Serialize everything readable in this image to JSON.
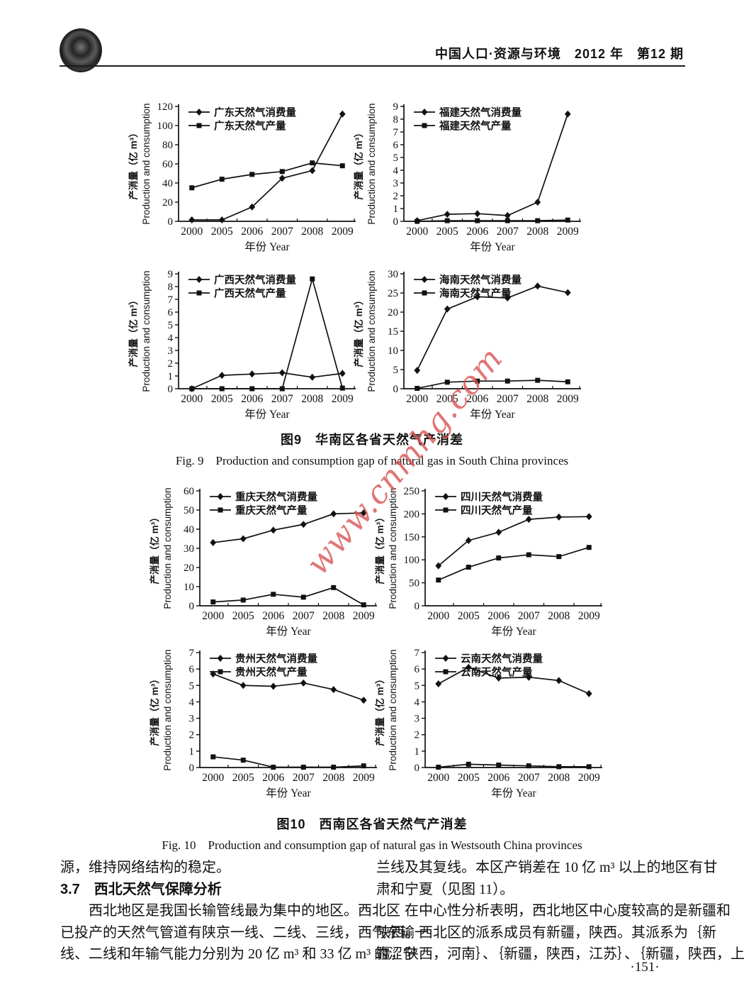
{
  "header": {
    "journal_title": "中国人口·资源与环境　2012 年　第12 期",
    "logo": "journal-seal"
  },
  "figures": {
    "fig9": {
      "caption_zh": "图9　华南区各省天然气产消差",
      "caption_en": "Fig. 9　Production and consumption gap of natural gas in South China provinces"
    },
    "fig10": {
      "caption_zh": "图10　西南区各省天然气产消差",
      "caption_en": "Fig. 10　Production and consumption gap of natural gas in Westsouth China provinces"
    }
  },
  "chart_data": [
    {
      "type": "line",
      "x": [
        "2000",
        "2005",
        "2006",
        "2007",
        "2008",
        "2009"
      ],
      "xlabel": "年份 Year",
      "ylabel_zh": "产消量（亿 m³）",
      "ylabel_en": "Production and consumption",
      "ylim": [
        0,
        120
      ],
      "yticks": [
        0,
        20,
        40,
        60,
        80,
        100,
        120
      ],
      "legend_position": "top-left",
      "series": [
        {
          "name": "广东天然气消费量",
          "marker": "diamond",
          "values": [
            1.5,
            1.5,
            15,
            45,
            53,
            112
          ]
        },
        {
          "name": "广东天然气产量",
          "marker": "square",
          "values": [
            35,
            44,
            49,
            52,
            61,
            58
          ]
        }
      ]
    },
    {
      "type": "line",
      "x": [
        "2000",
        "2005",
        "2006",
        "2007",
        "2008",
        "2009"
      ],
      "xlabel": "年份 Year",
      "ylabel_zh": "产消量（亿 m³）",
      "ylabel_en": "Production and consumption",
      "ylim": [
        0,
        9
      ],
      "yticks": [
        0,
        1,
        2,
        3,
        4,
        5,
        6,
        7,
        8,
        9
      ],
      "legend_position": "top-left",
      "series": [
        {
          "name": "福建天然气消费量",
          "marker": "diamond",
          "values": [
            0.05,
            0.55,
            0.6,
            0.45,
            1.5,
            8.4
          ]
        },
        {
          "name": "福建天然气产量",
          "marker": "square",
          "values": [
            0,
            0.05,
            0.05,
            0.05,
            0.05,
            0.1
          ]
        }
      ]
    },
    {
      "type": "line",
      "x": [
        "2000",
        "2005",
        "2006",
        "2007",
        "2008",
        "2009"
      ],
      "xlabel": "年份 Year",
      "ylabel_zh": "产消量（亿 m³）",
      "ylabel_en": "Production and consumption",
      "ylim": [
        0,
        9
      ],
      "yticks": [
        0,
        1,
        2,
        3,
        4,
        5,
        6,
        7,
        8,
        9
      ],
      "legend_position": "top-left",
      "series": [
        {
          "name": "广西天然气消费量",
          "marker": "diamond",
          "values": [
            0,
            1.05,
            1.15,
            1.25,
            0.9,
            1.2
          ]
        },
        {
          "name": "广西天然气产量",
          "marker": "square",
          "values": [
            0,
            0,
            0,
            0,
            8.6,
            0.05
          ]
        }
      ]
    },
    {
      "type": "line",
      "x": [
        "2000",
        "2005",
        "2006",
        "2007",
        "2008",
        "2009"
      ],
      "xlabel": "年份 Year",
      "ylabel_zh": "产消量（亿 m³）",
      "ylabel_en": "Production and consumption",
      "ylim": [
        0,
        30
      ],
      "yticks": [
        0,
        5,
        10,
        15,
        20,
        25,
        30
      ],
      "legend_position": "top-left",
      "series": [
        {
          "name": "海南天然气消费量",
          "marker": "diamond",
          "values": [
            4.8,
            20.8,
            24,
            23.7,
            26.8,
            25.1
          ]
        },
        {
          "name": "海南天然气产量",
          "marker": "square",
          "values": [
            0.1,
            1.7,
            2,
            2,
            2.2,
            1.8
          ]
        }
      ]
    },
    {
      "type": "line",
      "x": [
        "2000",
        "2005",
        "2006",
        "2007",
        "2008",
        "2009"
      ],
      "xlabel": "年份 Year",
      "ylabel_zh": "产消量（亿 m³）",
      "ylabel_en": "Production and consumption",
      "ylim": [
        0,
        60
      ],
      "yticks": [
        0,
        10,
        20,
        30,
        40,
        50,
        60
      ],
      "legend_position": "top-left",
      "series": [
        {
          "name": "重庆天然气消费量",
          "marker": "diamond",
          "values": [
            33,
            35,
            39.5,
            42.5,
            48,
            48.5
          ]
        },
        {
          "name": "重庆天然气产量",
          "marker": "square",
          "values": [
            2,
            3,
            6,
            4.5,
            9.5,
            0.5
          ]
        }
      ]
    },
    {
      "type": "line",
      "x": [
        "2000",
        "2005",
        "2006",
        "2007",
        "2008",
        "2009"
      ],
      "xlabel": "年份 Year",
      "ylabel_zh": "产消量（亿 m³）",
      "ylabel_en": "Production and consumption",
      "ylim": [
        0,
        250
      ],
      "yticks": [
        0,
        50,
        100,
        150,
        200,
        250
      ],
      "legend_position": "top-left",
      "series": [
        {
          "name": "四川天然气消费量",
          "marker": "diamond",
          "values": [
            87,
            142,
            160,
            188,
            193,
            194
          ]
        },
        {
          "name": "四川天然气产量",
          "marker": "square",
          "values": [
            56,
            84,
            104,
            111,
            107,
            127
          ]
        }
      ]
    },
    {
      "type": "line",
      "x": [
        "2000",
        "2005",
        "2006",
        "2007",
        "2008",
        "2009"
      ],
      "xlabel": "年份 Year",
      "ylabel_zh": "产消量（亿 m³）",
      "ylabel_en": "Production and consumption",
      "ylim": [
        0,
        7
      ],
      "yticks": [
        0,
        1,
        2,
        3,
        4,
        5,
        6,
        7
      ],
      "legend_position": "top-left",
      "series": [
        {
          "name": "贵州天然气消费量",
          "marker": "diamond",
          "values": [
            5.7,
            5.0,
            4.95,
            5.15,
            4.75,
            4.1
          ]
        },
        {
          "name": "贵州天然气产量",
          "marker": "square",
          "values": [
            0.65,
            0.45,
            0.02,
            0.02,
            0.02,
            0.1
          ]
        }
      ]
    },
    {
      "type": "line",
      "x": [
        "2000",
        "2005",
        "2006",
        "2007",
        "2008",
        "2009"
      ],
      "xlabel": "年份 Year",
      "ylabel_zh": "产消量（亿 m³）",
      "ylabel_en": "Production and consumption",
      "ylim": [
        0,
        7
      ],
      "yticks": [
        0,
        1,
        2,
        3,
        4,
        5,
        6,
        7
      ],
      "legend_position": "top-left",
      "series": [
        {
          "name": "云南天然气消费量",
          "marker": "diamond",
          "values": [
            5.1,
            6.1,
            5.45,
            5.5,
            5.3,
            4.5
          ]
        },
        {
          "name": "云南天然气产量",
          "marker": "square",
          "values": [
            0.02,
            0.2,
            0.15,
            0.1,
            0.05,
            0.05
          ]
        }
      ]
    }
  ],
  "body": {
    "left_column": {
      "lines": [
        {
          "text": "源，维持网络结构的稳定。"
        },
        {
          "text": "3.7　西北天然气保障分析"
        },
        {
          "text": "西北地区是我国长输管线最为集中的地区。西北区"
        },
        {
          "text": "已投产的天然气管道有陕京一线、二线、三线，西气东输一"
        },
        {
          "text": "线、二线和年输气能力分别为 20 亿 m³ 和 33 亿 m³ 的涩宁"
        }
      ]
    },
    "right_column": {
      "lines": [
        {
          "text": "兰线及其复线。本区产销差在 10 亿 m³ 以上的地区有甘"
        },
        {
          "text": "肃和宁夏（见图 11）。"
        },
        {
          "text": "在中心性分析表明，西北地区中心度较高的是新疆和"
        },
        {
          "text": "陕西。西北区的派系成员有新疆，陕西。其派系为｛新"
        },
        {
          "text": "疆，陕西，河南｝、｛新疆，陕西，江苏｝、｛新疆，陕西，上"
        }
      ]
    }
  },
  "watermark": {
    "text": "www.cnmhg.com",
    "color": "#d85050"
  },
  "page_number": "·151·"
}
